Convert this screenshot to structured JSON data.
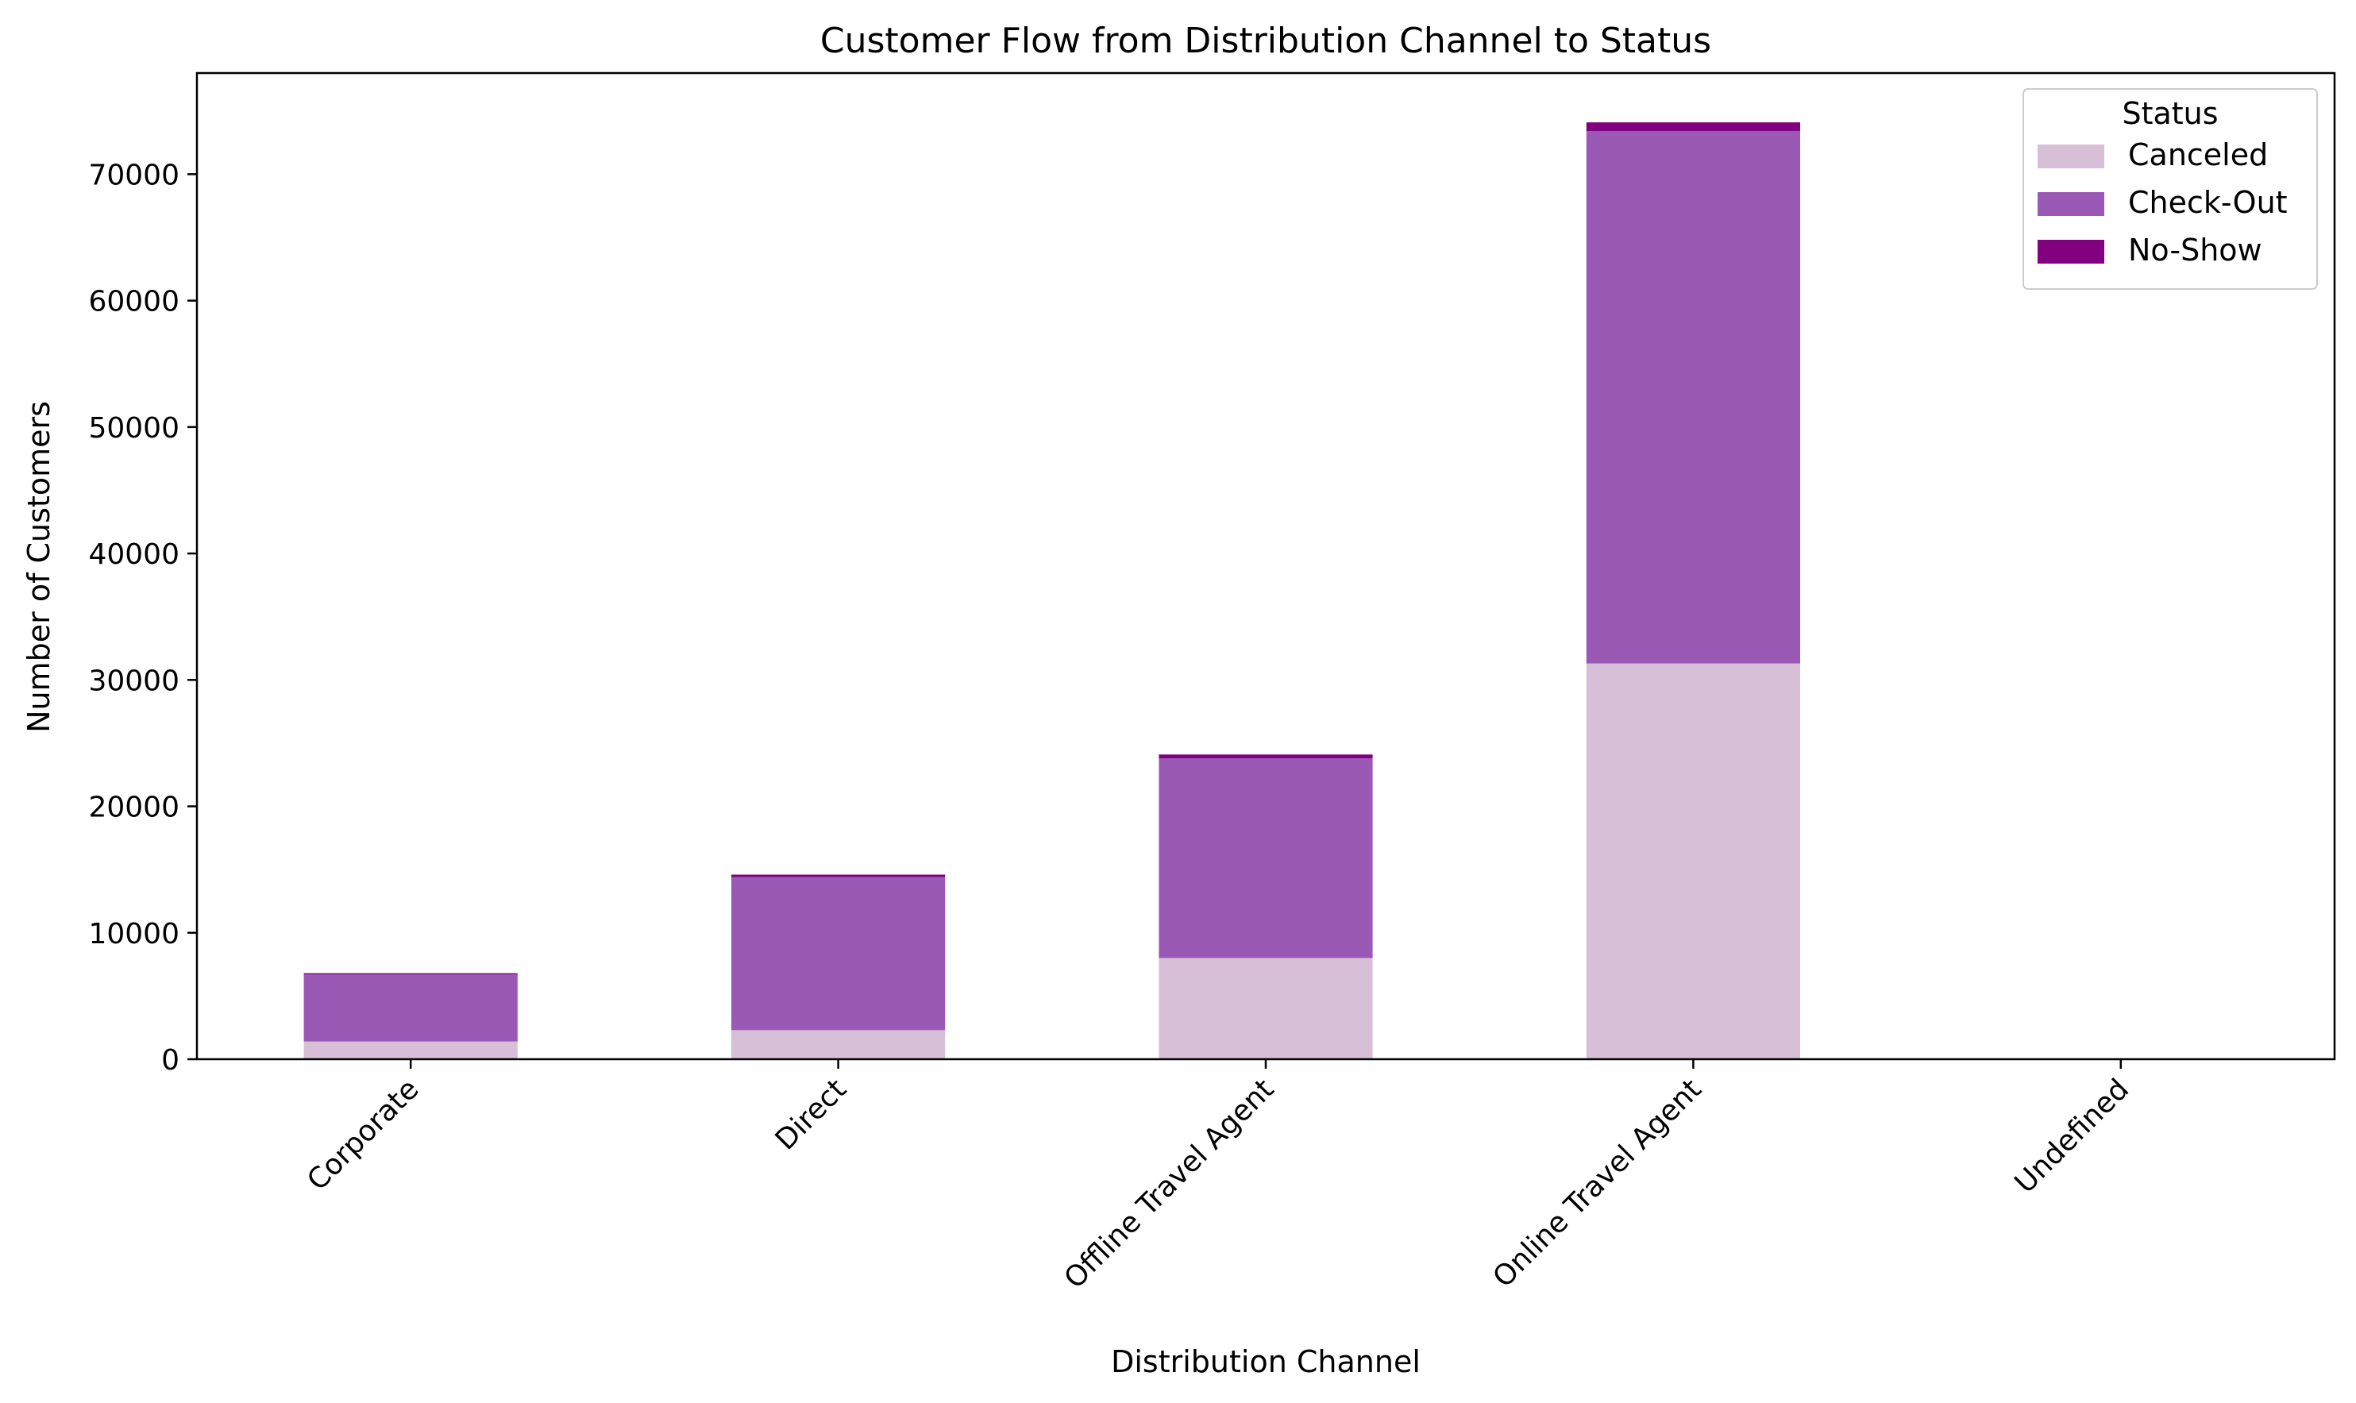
{
  "chart_data": {
    "type": "bar",
    "stacked": true,
    "title": "Customer Flow from Distribution Channel to Status",
    "xlabel": "Distribution Channel",
    "ylabel": "Number of Customers",
    "categories": [
      "Corporate",
      "Direct",
      "Offline Travel Agent",
      "Online Travel Agent",
      "Undefined"
    ],
    "ylim": [
      0,
      78000
    ],
    "yticks": [
      0,
      10000,
      20000,
      30000,
      40000,
      50000,
      60000,
      70000
    ],
    "grid": false,
    "legend": {
      "title": "Status",
      "position": "top-right"
    },
    "series": [
      {
        "name": "Canceled",
        "color": "#d8bfd8",
        "values": [
          1400,
          2300,
          8000,
          31300,
          0
        ]
      },
      {
        "name": "Check-Out",
        "color": "#9b59b6",
        "values": [
          5300,
          12100,
          15800,
          42100,
          0
        ]
      },
      {
        "name": "No-Show",
        "color": "#800080",
        "values": [
          100,
          200,
          300,
          700,
          0
        ]
      }
    ]
  }
}
